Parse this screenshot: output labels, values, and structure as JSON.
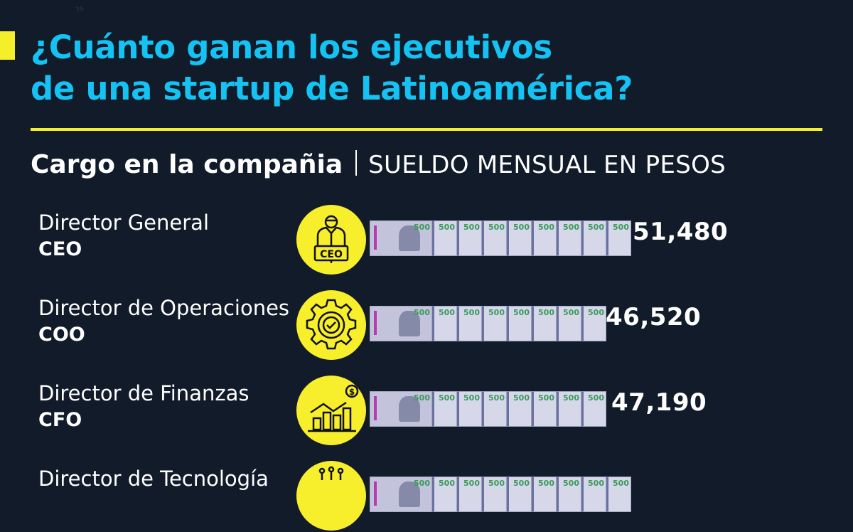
{
  "page_number": "39",
  "title_line1": "¿Cuánto ganan los ejecutivos",
  "title_line2": "de una startup de Latinoamérica?",
  "subheading": {
    "bold": "Cargo en la compañia",
    "light": "SUELDO MENSUAL EN PESOS"
  },
  "bill_label": "500",
  "colors": {
    "background": "#111b29",
    "title": "#14c3f3",
    "accent": "#f5ef2a"
  },
  "rows": [
    {
      "role": "Director General",
      "abbr": "CEO",
      "amount": "51,480",
      "icon": "ceo-podium-icon",
      "bills": 9
    },
    {
      "role": "Director de Operaciones",
      "abbr": "COO",
      "amount": "46,520",
      "icon": "gear-check-icon",
      "bills": 8
    },
    {
      "role": "Director de Finanzas",
      "abbr": "CFO",
      "amount": "47,190",
      "icon": "growth-chart-dollar-icon",
      "bills": 8
    },
    {
      "role": "Director de Tecnología",
      "abbr": "",
      "amount": "",
      "icon": "circuit-icon",
      "bills": 9
    }
  ]
}
